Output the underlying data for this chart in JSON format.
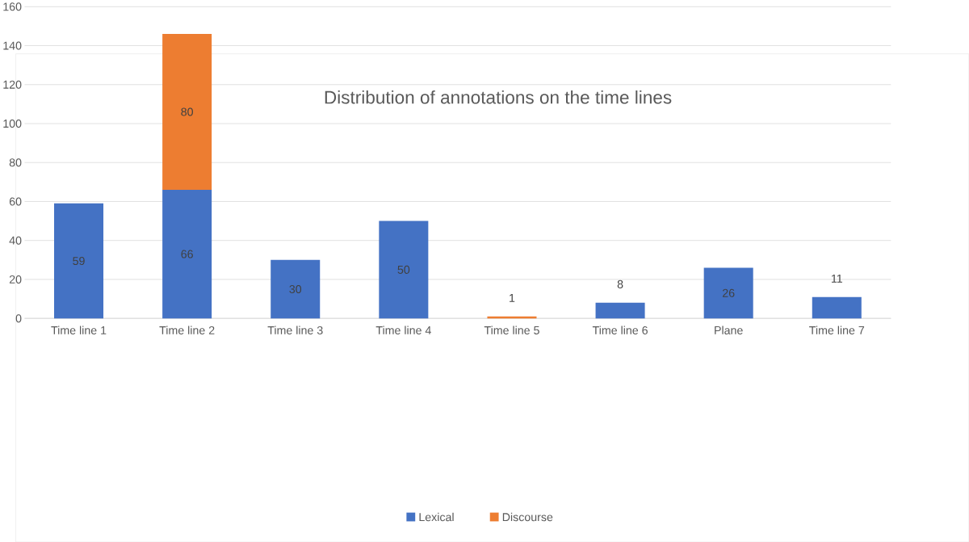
{
  "chart_data": {
    "type": "bar",
    "stacked": true,
    "title": "Distribution of annotations on the time lines",
    "categories": [
      "Time line 1",
      "Time line 2",
      "Time line 3",
      "Time line 4",
      "Time line 5",
      "Time line 6",
      "Plane",
      "Time line 7"
    ],
    "series": [
      {
        "name": "Lexical",
        "color": "#4472c4",
        "values": [
          59,
          66,
          30,
          50,
          null,
          8,
          26,
          11
        ]
      },
      {
        "name": "Discourse",
        "color": "#ed7d31",
        "values": [
          null,
          80,
          null,
          null,
          1,
          null,
          null,
          null
        ]
      }
    ],
    "ylim": [
      0,
      160
    ],
    "yticks": [
      0,
      20,
      40,
      60,
      80,
      100,
      120,
      140,
      160
    ],
    "grid": "y",
    "legend": "bottom",
    "data_labels": true
  }
}
